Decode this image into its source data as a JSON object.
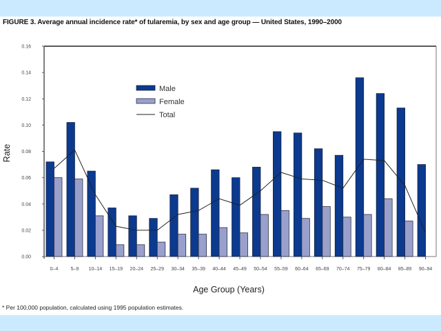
{
  "figure": {
    "title": "FIGURE 3. Average annual incidence rate* of tularemia, by sex and age group — United States, 1990–2000",
    "footnote": "* Per 100,000 population, calculated using 1995 population estimates."
  },
  "colors": {
    "band": "#cceaff",
    "male": "#0b3a8f",
    "female": "#9aa0cc",
    "total": "#222222",
    "axis": "#555555"
  },
  "chart_data": {
    "type": "bar",
    "title": "Average annual incidence rate* of tularemia, by sex and age group — United States, 1990–2000",
    "xlabel": "Age Group (Years)",
    "ylabel": "Rate",
    "ylim": [
      0,
      0.16
    ],
    "yticks": [
      "0.00",
      "0.02",
      "0.04",
      "0.06",
      "0.08",
      "0.10",
      "0.12",
      "0.14",
      "0.16"
    ],
    "grid": false,
    "legend_position": "upper-left-inside",
    "categories": [
      "0–4",
      "5–9",
      "10–14",
      "15–19",
      "20–24",
      "25–29",
      "30–34",
      "35–39",
      "40–44",
      "45–49",
      "50–54",
      "55–59",
      "60–64",
      "65–69",
      "70–74",
      "75–79",
      "80–84",
      "85–89",
      "90–94"
    ],
    "series": [
      {
        "name": "Male",
        "type": "bar",
        "values": [
          0.072,
          0.102,
          0.065,
          0.037,
          0.031,
          0.029,
          0.047,
          0.052,
          0.066,
          0.06,
          0.068,
          0.095,
          0.094,
          0.082,
          0.077,
          0.136,
          0.124,
          0.113,
          0.07
        ]
      },
      {
        "name": "Female",
        "type": "bar",
        "values": [
          0.06,
          0.059,
          0.031,
          0.009,
          0.009,
          0.011,
          0.017,
          0.017,
          0.022,
          0.018,
          0.032,
          0.035,
          0.029,
          0.038,
          0.03,
          0.032,
          0.044,
          0.027,
          0.0
        ]
      },
      {
        "name": "Total",
        "type": "line",
        "values": [
          0.067,
          0.081,
          0.047,
          0.023,
          0.02,
          0.02,
          0.032,
          0.035,
          0.044,
          0.039,
          0.05,
          0.064,
          0.059,
          0.058,
          0.052,
          0.074,
          0.073,
          0.054,
          0.018
        ]
      }
    ]
  }
}
